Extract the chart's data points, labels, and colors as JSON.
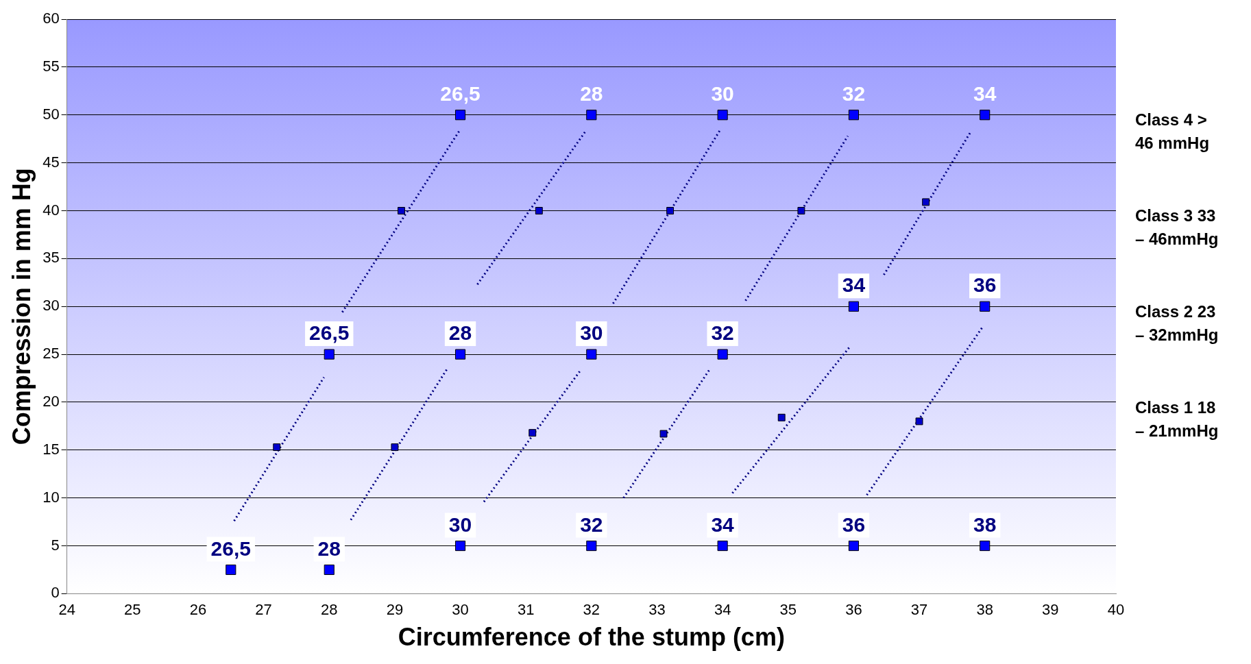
{
  "chart_data": {
    "type": "scatter",
    "xlabel": "Circumference of the stump (cm)",
    "ylabel": "Compression in mm Hg",
    "xlim": [
      24,
      40
    ],
    "xticks": [
      24,
      25,
      26,
      27,
      28,
      29,
      30,
      31,
      32,
      33,
      34,
      35,
      36,
      37,
      38,
      39,
      40
    ],
    "ylim": [
      0,
      60
    ],
    "yticks": [
      0,
      5,
      10,
      15,
      20,
      25,
      30,
      35,
      40,
      45,
      50,
      55,
      60
    ],
    "grid": "y",
    "annotations": [
      "Class 4 > 46 mmHg",
      "Class 3 33 – 46mmHg",
      "Class 2 23 – 32mmHg",
      "Class 1 18 – 21mmHg",
      {
        "text": "26,5",
        "x": 30,
        "y": 50
      },
      {
        "text": "28",
        "x": 32,
        "y": 50
      },
      {
        "text": "30",
        "x": 34,
        "y": 50
      },
      {
        "text": "32",
        "x": 36,
        "y": 50
      },
      {
        "text": "34",
        "x": 38,
        "y": 50
      },
      {
        "text": "26,5",
        "x": 28,
        "y": 25
      },
      {
        "text": "28",
        "x": 30,
        "y": 25
      },
      {
        "text": "30",
        "x": 32,
        "y": 25
      },
      {
        "text": "32",
        "x": 34,
        "y": 25
      },
      {
        "text": "34",
        "x": 36,
        "y": 30
      },
      {
        "text": "36",
        "x": 38,
        "y": 30
      },
      {
        "text": "26,5",
        "x": 26.5,
        "y": 2.5
      },
      {
        "text": "28",
        "x": 28,
        "y": 2.5
      },
      {
        "text": "30",
        "x": 30,
        "y": 5
      },
      {
        "text": "32",
        "x": 32,
        "y": 5
      },
      {
        "text": "34",
        "x": 34,
        "y": 5
      },
      {
        "text": "36",
        "x": 36,
        "y": 5
      },
      {
        "text": "38",
        "x": 38,
        "y": 5
      }
    ],
    "series": [
      {
        "marker": "square",
        "color": "#0000ff",
        "x": [
          30,
          32,
          34,
          36,
          38
        ],
        "values": [
          50,
          50,
          50,
          50,
          50
        ]
      },
      {
        "marker": "square",
        "color": "#0000ff",
        "x": [
          28,
          30,
          32,
          34,
          36,
          38
        ],
        "values": [
          25,
          25,
          25,
          25,
          30,
          30
        ]
      },
      {
        "marker": "square",
        "color": "#0000ff",
        "x": [
          26.5,
          28,
          30,
          32,
          34,
          36,
          38
        ],
        "values": [
          2.5,
          2.5,
          5,
          5,
          5,
          5,
          5
        ]
      },
      {
        "marker": "square",
        "color": "#0000cc",
        "x": [
          29.1,
          31.2,
          33.2,
          35.2,
          37.1
        ],
        "values": [
          40,
          40,
          40,
          40,
          40.9
        ]
      },
      {
        "marker": "square",
        "color": "#0000cc",
        "x": [
          27.2,
          29.0,
          31.1,
          33.1,
          34.9,
          37.0
        ],
        "values": [
          15.3,
          15.3,
          16.8,
          16.7,
          18.4,
          18.0
        ]
      },
      {
        "type": "line",
        "marker": "none",
        "line_style": "dotted",
        "color": "#000080",
        "x": [
          26.55,
          27.92
        ],
        "values": [
          7.6,
          22.6
        ]
      },
      {
        "type": "line",
        "marker": "none",
        "line_style": "dotted",
        "color": "#000080",
        "x": [
          28.2,
          30.0
        ],
        "values": [
          29.4,
          48.5
        ]
      },
      {
        "type": "line",
        "marker": "none",
        "line_style": "dotted",
        "color": "#000080",
        "x": [
          28.33,
          29.81
        ],
        "values": [
          7.7,
          23.6
        ]
      },
      {
        "type": "line",
        "marker": "none",
        "line_style": "dotted",
        "color": "#000080",
        "x": [
          30.26,
          31.91
        ],
        "values": [
          32.3,
          48.3
        ]
      },
      {
        "type": "line",
        "marker": "none",
        "line_style": "dotted",
        "color": "#000080",
        "x": [
          30.36,
          31.83
        ],
        "values": [
          9.6,
          23.3
        ]
      },
      {
        "type": "line",
        "marker": "none",
        "line_style": "dotted",
        "color": "#000080",
        "x": [
          32.33,
          33.96
        ],
        "values": [
          30.3,
          48.4
        ]
      },
      {
        "type": "line",
        "marker": "none",
        "line_style": "dotted",
        "color": "#000080",
        "x": [
          32.49,
          33.8
        ],
        "values": [
          10.0,
          23.4
        ]
      },
      {
        "type": "line",
        "marker": "none",
        "line_style": "dotted",
        "color": "#000080",
        "x": [
          34.35,
          35.91
        ],
        "values": [
          30.6,
          47.8
        ]
      },
      {
        "type": "line",
        "marker": "none",
        "line_style": "dotted",
        "color": "#000080",
        "x": [
          34.15,
          35.93
        ],
        "values": [
          10.5,
          25.7
        ]
      },
      {
        "type": "line",
        "marker": "none",
        "line_style": "dotted",
        "color": "#000080",
        "x": [
          36.46,
          37.79
        ],
        "values": [
          33.3,
          48.3
        ]
      },
      {
        "type": "line",
        "marker": "none",
        "line_style": "dotted",
        "color": "#000080",
        "x": [
          36.2,
          37.96
        ],
        "values": [
          10.3,
          27.8
        ]
      }
    ]
  }
}
